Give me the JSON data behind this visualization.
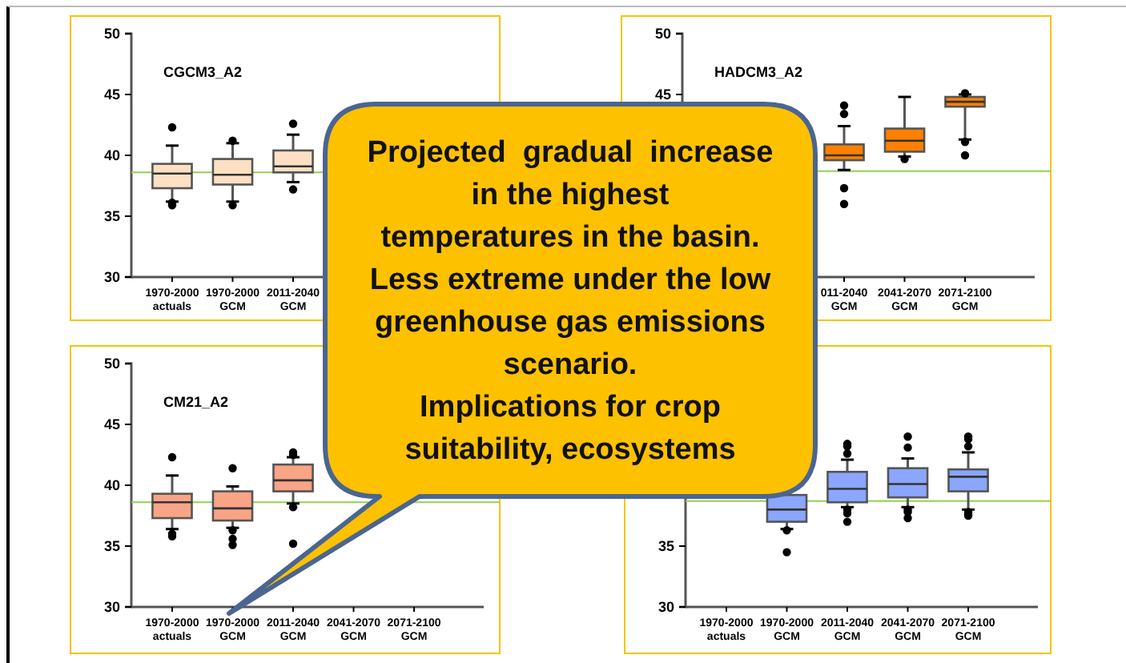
{
  "chart_data": [
    {
      "type": "box",
      "title": "CGCM3_A2",
      "categories": [
        "1970-2000 actuals",
        "1970-2000 GCM",
        "2011-2040 GCM",
        null,
        null
      ],
      "ylim": [
        30,
        50
      ],
      "yticks": [
        30,
        35,
        40,
        45,
        50
      ],
      "color": "#fde0c4",
      "boxes": [
        {
          "low": 36.2,
          "q1": 37.3,
          "median": 38.5,
          "q3": 39.3,
          "high": 40.8,
          "outliers": [
            42.3,
            36.1,
            35.9
          ]
        },
        {
          "low": 36.2,
          "q1": 37.6,
          "median": 38.4,
          "q3": 39.7,
          "high": 41.0,
          "outliers": [
            41.2,
            35.9
          ]
        },
        {
          "low": 37.8,
          "q1": 38.6,
          "median": 39.1,
          "q3": 40.4,
          "high": 41.7,
          "outliers": [
            42.6,
            37.2
          ]
        },
        null,
        null
      ],
      "ref_lines": [
        {
          "axis": "y",
          "value": 38.6,
          "color": "#92d050"
        }
      ],
      "annotations": [
        "Projected  gradual  increase\nin the highest\ntemperatures in the basin.\nLess extreme under the low\ngreenhouse gas emissions\nscenario.\nImplications for crop\nsuitability, ecosystems"
      ]
    },
    {
      "type": "box",
      "title": "HADCM3_A2",
      "categories": [
        null,
        null,
        "011-2040 GCM",
        "2041-2070 GCM",
        "2071-2100 GCM"
      ],
      "ylim": [
        30,
        50
      ],
      "yticks": [
        45,
        50
      ],
      "color": "#ff8000",
      "boxes": [
        null,
        null,
        {
          "low": 38.8,
          "q1": 39.6,
          "median": 40.0,
          "q3": 40.9,
          "high": 42.4,
          "outliers": [
            43.4,
            44.1,
            37.3,
            36.0
          ]
        },
        {
          "low": 39.9,
          "q1": 40.3,
          "median": 41.2,
          "q3": 42.2,
          "high": 44.8,
          "outliers": [
            39.7
          ]
        },
        {
          "low": 41.3,
          "q1": 44.0,
          "median": 44.4,
          "q3": 44.8,
          "high": 45.0,
          "outliers": [
            45.1,
            41.1,
            40.0
          ]
        }
      ],
      "ref_lines": [
        {
          "axis": "y",
          "value": 38.7,
          "color": "#92d050"
        }
      ]
    },
    {
      "type": "box",
      "title": "CM21_A2",
      "categories": [
        "1970-2000 actuals",
        "1970-2000 GCM",
        "2011-2040 GCM",
        "2041-2070 GCM",
        "2071-2100 GCM"
      ],
      "ylim": [
        30,
        50
      ],
      "yticks": [
        30,
        35,
        40,
        45,
        50
      ],
      "color": "#f9a486",
      "boxes": [
        {
          "low": 36.4,
          "q1": 37.3,
          "median": 38.6,
          "q3": 39.3,
          "high": 40.8,
          "outliers": [
            42.3,
            36.0,
            35.8
          ]
        },
        {
          "low": 36.5,
          "q1": 37.1,
          "median": 38.1,
          "q3": 39.5,
          "high": 39.9,
          "outliers": [
            41.4,
            36.3,
            35.6,
            35.1
          ]
        },
        {
          "low": 38.5,
          "q1": 39.5,
          "median": 40.4,
          "q3": 41.7,
          "high": 42.3,
          "outliers": [
            42.7,
            42.5,
            38.2,
            35.2
          ]
        },
        null,
        null
      ],
      "ref_lines": [
        {
          "axis": "y",
          "value": 38.6,
          "color": "#92d050"
        }
      ]
    },
    {
      "type": "box",
      "categories": [
        "1970-2000 actuals",
        "1970-2000 GCM",
        "2011-2040 GCM",
        "2041-2070 GCM",
        "2071-2100 GCM"
      ],
      "ylim": [
        30,
        50
      ],
      "yticks": [
        30,
        35
      ],
      "color": "#8aa6ff",
      "boxes": [
        null,
        {
          "low": 36.4,
          "q1": 37.0,
          "median": 38.0,
          "q3": 39.2,
          "high": 39.8,
          "outliers": [
            36.3,
            34.5
          ]
        },
        {
          "low": 38.2,
          "q1": 38.6,
          "median": 39.7,
          "q3": 41.1,
          "high": 42.1,
          "outliers": [
            42.6,
            43.2,
            43.4,
            38.0,
            37.7,
            37.0
          ]
        },
        {
          "low": 38.2,
          "q1": 39.0,
          "median": 40.1,
          "q3": 41.4,
          "high": 42.2,
          "outliers": [
            43.1,
            44.0,
            38.0,
            37.8,
            37.3
          ]
        },
        {
          "low": 38.0,
          "q1": 39.5,
          "median": 40.7,
          "q3": 41.3,
          "high": 42.7,
          "outliers": [
            43.2,
            43.8,
            44.0,
            37.8,
            37.6,
            37.5
          ]
        }
      ],
      "ref_lines": [
        {
          "axis": "y",
          "value": 38.7,
          "color": "#92d050"
        }
      ]
    }
  ]
}
